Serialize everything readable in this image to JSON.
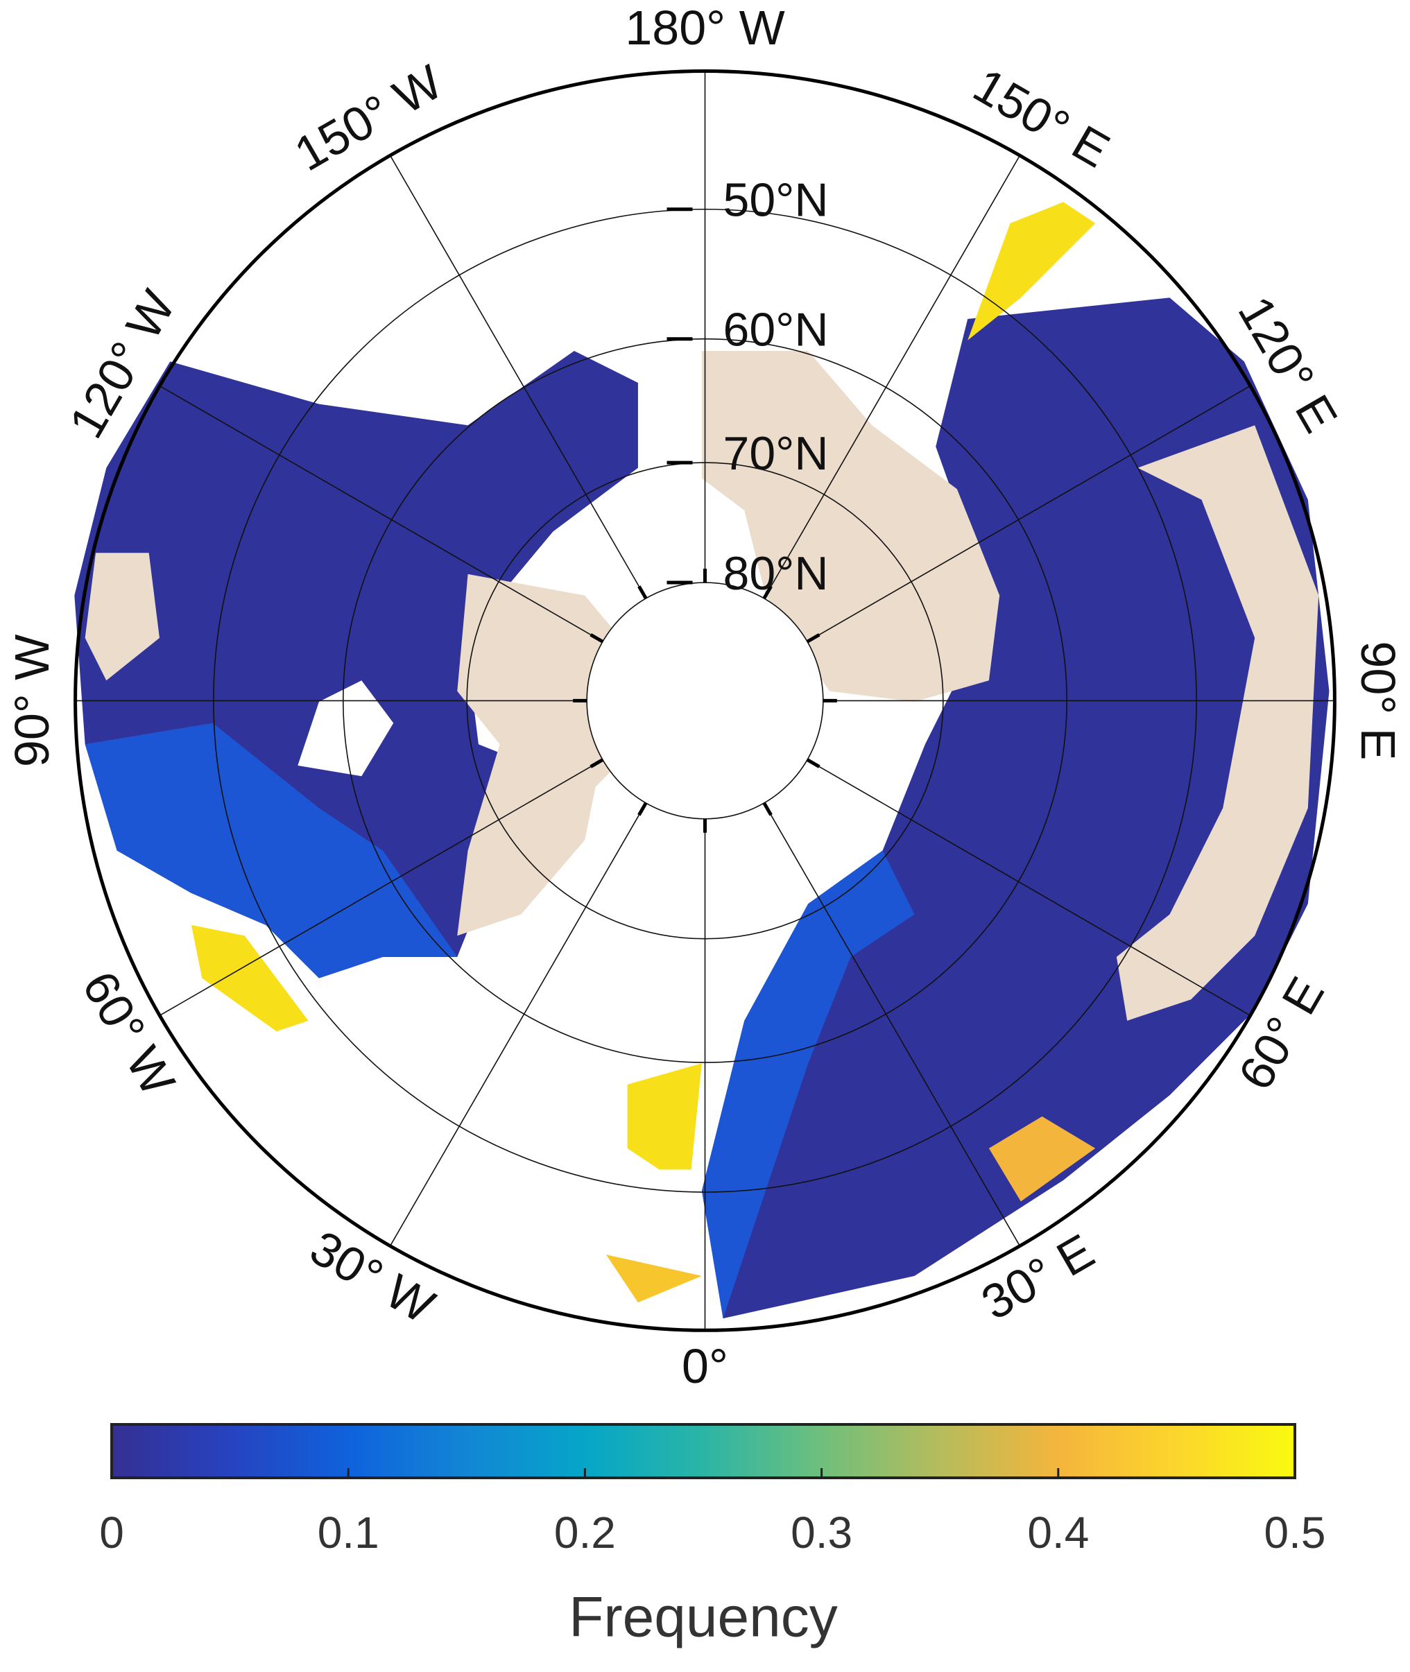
{
  "chart_data": {
    "type": "polar-stereographic-map",
    "latlim": [
      40,
      90
    ],
    "latitude_ticks": [
      {
        "value": 50,
        "label": "50°N"
      },
      {
        "value": 60,
        "label": "60°N"
      },
      {
        "value": 70,
        "label": "70°N"
      },
      {
        "value": 80,
        "label": "80°N"
      }
    ],
    "longitude_ticks": [
      {
        "value": -180,
        "label": "180° W"
      },
      {
        "value": -150,
        "label": "150° W"
      },
      {
        "value": -120,
        "label": "120° W"
      },
      {
        "value": -90,
        "label": "90° W"
      },
      {
        "value": -60,
        "label": "60° W"
      },
      {
        "value": -30,
        "label": "30° W"
      },
      {
        "value": 0,
        "label": "0°"
      },
      {
        "value": 30,
        "label": "30° E"
      },
      {
        "value": 60,
        "label": "60° E"
      },
      {
        "value": 90,
        "label": "90° E"
      },
      {
        "value": 120,
        "label": "120° E"
      },
      {
        "value": 150,
        "label": "150° E"
      }
    ],
    "colorbar": {
      "label": "Frequency",
      "lim": [
        0,
        0.5
      ],
      "ticks": [
        0,
        0.1,
        0.2,
        0.3,
        0.4,
        0.5
      ],
      "colormap": [
        "#352f93",
        "#2743c0",
        "#0f62dc",
        "#1286d4",
        "#06a6c8",
        "#2bb5a6",
        "#6fbf7c",
        "#b6bc5c",
        "#f4b53c",
        "#fcd62c",
        "#f9fa10"
      ]
    }
  }
}
